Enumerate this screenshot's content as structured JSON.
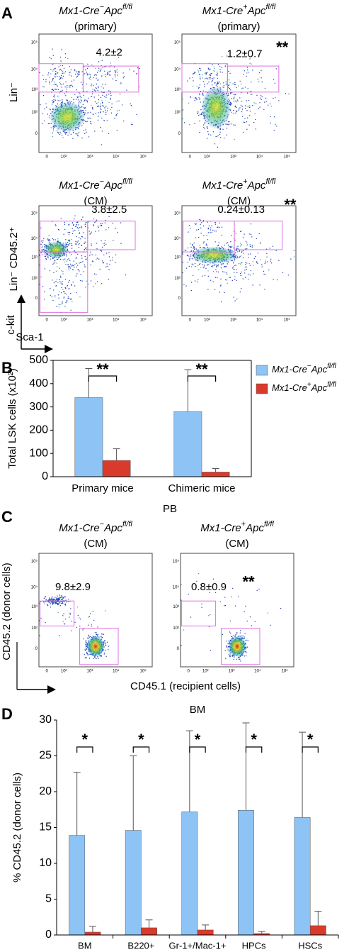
{
  "panel_labels": [
    "A",
    "B",
    "C",
    "D"
  ],
  "flow_ticks": [
    "0",
    "10²",
    "10³",
    "10⁴",
    "10⁵"
  ],
  "panel_a": {
    "row_labels": [
      "Lin⁻",
      "Lin⁻ CD45.2⁺"
    ],
    "y_axis_label": "c-kit",
    "x_axis_label": "Sca-1",
    "plots": [
      {
        "condition": "(primary)",
        "value": "4.2±2"
      },
      {
        "condition": "(primary)",
        "value": "1.2±0.7",
        "significance": "**"
      },
      {
        "condition": "(CM)",
        "value": "3.8±2.5"
      },
      {
        "condition": "(CM)",
        "value": "0.24±0.13",
        "significance": "**"
      }
    ]
  },
  "panel_c": {
    "title": "PB",
    "y_axis_label": "CD45.2 (donor cells)",
    "x_axis_label": "CD45.1 (recipient cells)",
    "plots": [
      {
        "condition": "(CM)",
        "value": "9.8±2.9"
      },
      {
        "condition": "(CM)",
        "value": "0.8±0.9",
        "significance": "**"
      }
    ]
  },
  "chart_data": [
    {
      "type": "bar",
      "ylabel": "Total LSK cells (x10²)",
      "categories": [
        "Primary mice",
        "Chimeric mice"
      ],
      "series": [
        {
          "name": {
            "gene1": "Mx1-Cre",
            "sup1": "−",
            "gene2": "Apc",
            "sup2": "fl/fl"
          },
          "color": "#8ec3f5",
          "values": [
            340,
            280
          ],
          "errors": [
            125,
            180
          ]
        },
        {
          "name": {
            "gene1": "Mx1-Cre",
            "sup1": "+",
            "gene2": "Apc",
            "sup2": "fl/fl"
          },
          "color": "#d93a2b",
          "values": [
            70,
            20
          ],
          "errors": [
            50,
            15
          ]
        }
      ],
      "significance": [
        "**",
        "**"
      ],
      "ylim": [
        0,
        500
      ],
      "yticks": [
        0,
        100,
        200,
        300,
        400,
        500
      ],
      "legend": "right"
    },
    {
      "type": "bar",
      "title": "BM",
      "ylabel": "% CD45.2 (donor cells)",
      "categories": [
        "BM",
        "B220+",
        "Gr-1+/Mac-1+",
        "HPCs",
        "HSCs"
      ],
      "series": [
        {
          "color": "#8ec3f5",
          "values": [
            13.9,
            14.6,
            17.2,
            17.4,
            16.4
          ],
          "errors": [
            8.8,
            10.4,
            11.3,
            12.2,
            11.9
          ]
        },
        {
          "color": "#d93a2b",
          "values": [
            0.4,
            1.0,
            0.7,
            0.2,
            1.3
          ],
          "errors": [
            0.8,
            1.1,
            0.7,
            0.3,
            2.0
          ]
        }
      ],
      "significance": [
        "*",
        "*",
        "*",
        "*",
        "*"
      ],
      "ylim": [
        0,
        30
      ],
      "yticks": [
        0,
        5,
        10,
        15,
        20,
        25,
        30
      ]
    }
  ]
}
